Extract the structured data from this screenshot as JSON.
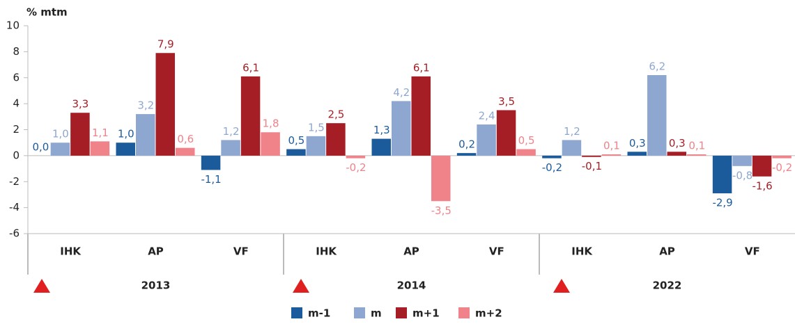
{
  "chart_data": {
    "type": "bar",
    "y_label": "% mtm",
    "categories": [
      "IHK",
      "AP",
      "VF",
      "IHK",
      "AP",
      "VF",
      "IHK",
      "AP",
      "VF"
    ],
    "groups": [
      "2013",
      "2014",
      "2022"
    ],
    "series": [
      {
        "name": "m-1",
        "color": "#1b5b9b",
        "values": [
          0.0,
          1.0,
          -1.1,
          0.5,
          1.3,
          0.2,
          -0.2,
          0.3,
          -2.9
        ],
        "value_labels": [
          "0,0",
          "1,0",
          "-1,1",
          "0,5",
          "1,3",
          "0,2",
          "-0,2",
          "0,3",
          "-2,9"
        ]
      },
      {
        "name": "m",
        "color": "#8ea7d1",
        "values": [
          1.0,
          3.2,
          1.2,
          1.5,
          4.2,
          2.4,
          1.2,
          6.2,
          -0.8
        ],
        "value_labels": [
          "1,0",
          "3,2",
          "1,2",
          "1,5",
          "4,2",
          "2,4",
          "1,2",
          "6,2",
          "-0,8"
        ]
      },
      {
        "name": "m+1",
        "color": "#a61e25",
        "values": [
          3.3,
          7.9,
          6.1,
          2.5,
          6.1,
          3.5,
          -0.1,
          0.3,
          -1.6
        ],
        "value_labels": [
          "3,3",
          "7,9",
          "6,1",
          "2,5",
          "6,1",
          "3,5",
          "-0,1",
          "0,3",
          "-1,6"
        ]
      },
      {
        "name": "m+2",
        "color": "#f0828a",
        "values": [
          1.1,
          0.6,
          1.8,
          -0.2,
          -3.5,
          0.5,
          0.1,
          0.1,
          -0.2
        ],
        "value_labels": [
          "1,1",
          "0,6",
          "1,8",
          "-0,2",
          "-3,5",
          "0,5",
          "0,1",
          "0,1",
          "-0,2"
        ]
      }
    ],
    "ylim": [
      -6,
      10
    ],
    "yticks": [
      -6,
      -4,
      -2,
      0,
      2,
      4,
      6,
      8,
      10
    ],
    "grid": false
  }
}
